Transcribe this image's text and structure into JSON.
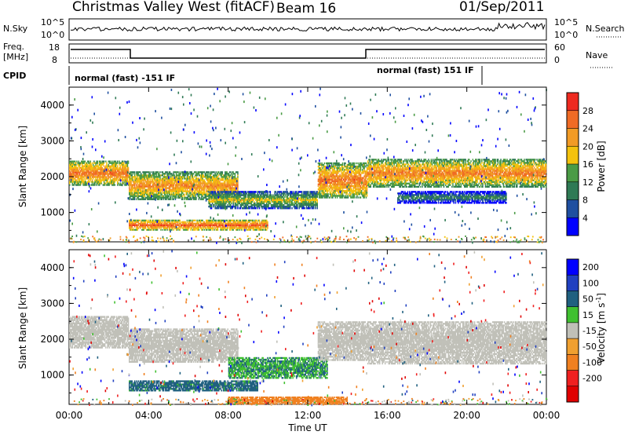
{
  "header": {
    "station": "Christmas Valley West (fitACF)",
    "beam": "Beam 16",
    "date": "01/Sep/2011"
  },
  "top_panel": {
    "left_label": "N.Sky",
    "left_ticks": [
      "10^5",
      "10^0"
    ],
    "right_label": "N.Search",
    "right_ticks": [
      "10^5",
      "10^0"
    ]
  },
  "freq_panel": {
    "left_label_1": "Freq.",
    "left_label_2": "[MHz]",
    "left_ticks": [
      "18",
      "8"
    ],
    "right_label": "Nave",
    "right_ticks": [
      "60",
      "0"
    ]
  },
  "cpid": {
    "label": "CPID",
    "mode_left": "normal (fast) -151 IF",
    "mode_right": "normal (fast) 151 IF"
  },
  "x_axis": {
    "label": "Time UT",
    "ticks": [
      "00:00",
      "04:00",
      "08:00",
      "12:00",
      "16:00",
      "20:00",
      "00:00"
    ]
  },
  "y_axis": {
    "label": "Slant Range [km]",
    "ticks": [
      "1000",
      "2000",
      "3000",
      "4000"
    ]
  },
  "power_colorbar": {
    "label": "Power [dB]",
    "ticks": [
      "4",
      "8",
      "12",
      "16",
      "20",
      "24",
      "28"
    ],
    "colors": [
      "#0000ff",
      "#1f4fa0",
      "#2f7a55",
      "#4a9b45",
      "#f4c20d",
      "#f29b25",
      "#f06b25",
      "#ee2a20"
    ]
  },
  "velocity_colorbar": {
    "label": "Velocity [m s",
    "label_sup": "-1",
    "label_end": "]",
    "ticks": [
      "200",
      "100",
      "50",
      "15",
      "-15",
      "-50",
      "-100",
      "-200"
    ],
    "colors": [
      "#0000ff",
      "#2040c0",
      "#206080",
      "#40c030",
      "#c0c0b8",
      "#f0a030",
      "#f08020",
      "#f02020",
      "#e00000"
    ]
  },
  "chart_data": [
    {
      "type": "heatmap",
      "title": "",
      "ylabel": "Slant Range [km]",
      "xlabel": "Time UT",
      "xlim": [
        "00:00",
        "24:00"
      ],
      "ylim": [
        180,
        4500
      ],
      "colorbar": "Power [dB]",
      "bands": [
        {
          "t0": 0.0,
          "t1": 3.0,
          "r0": 1750,
          "r1": 2450,
          "level": 26
        },
        {
          "t0": 3.0,
          "t1": 8.5,
          "r0": 1350,
          "r1": 2150,
          "level": 24
        },
        {
          "t0": 3.0,
          "t1": 10.0,
          "r0": 500,
          "r1": 800,
          "level": 27
        },
        {
          "t0": 7.0,
          "t1": 12.5,
          "r0": 1100,
          "r1": 1600,
          "level": 18
        },
        {
          "t0": 12.5,
          "t1": 15.0,
          "r0": 1400,
          "r1": 2400,
          "level": 26
        },
        {
          "t0": 15.0,
          "t1": 24.0,
          "r0": 1700,
          "r1": 2500,
          "level": 25
        },
        {
          "t0": 16.5,
          "t1": 22.0,
          "r0": 1250,
          "r1": 1600,
          "level": 12
        }
      ]
    },
    {
      "type": "heatmap",
      "title": "",
      "ylabel": "Slant Range [km]",
      "xlabel": "Time UT",
      "xlim": [
        "00:00",
        "24:00"
      ],
      "ylim": [
        180,
        4500
      ],
      "colorbar": "Velocity [m s-1]",
      "bands": [
        {
          "t0": 0.0,
          "t1": 3.0,
          "r0": 1750,
          "r1": 2650,
          "level": 0
        },
        {
          "t0": 3.0,
          "t1": 8.5,
          "r0": 1350,
          "r1": 2300,
          "level": 0
        },
        {
          "t0": 3.0,
          "t1": 9.5,
          "r0": 550,
          "r1": 850,
          "level": 40
        },
        {
          "t0": 8.0,
          "t1": 13.0,
          "r0": 900,
          "r1": 1500,
          "level": 30
        },
        {
          "t0": 12.5,
          "t1": 15.0,
          "r0": 1400,
          "r1": 2500,
          "level": 0
        },
        {
          "t0": 15.0,
          "t1": 24.0,
          "r0": 1300,
          "r1": 2500,
          "level": 0
        },
        {
          "t0": 8.0,
          "t1": 14.0,
          "r0": 180,
          "r1": 400,
          "level": -60
        }
      ]
    }
  ]
}
